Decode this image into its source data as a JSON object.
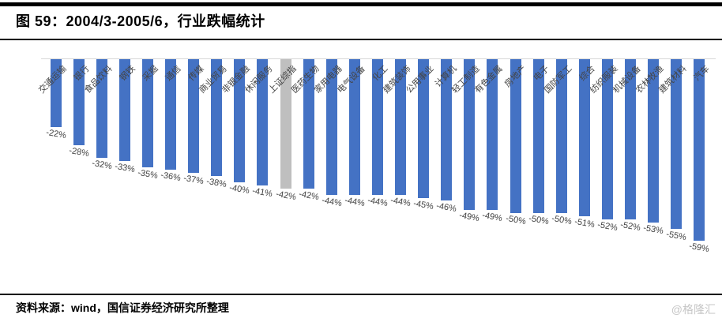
{
  "header": {
    "figure_title": "图 59：2004/3-2005/6，行业跌幅统计"
  },
  "footer": {
    "source": "资料来源：wind，国信证券经济研究所整理",
    "watermark": "@格隆汇"
  },
  "chart_data": {
    "type": "bar",
    "orientation": "vertical-negative",
    "title": "2004/3-2005/6，行业跌幅统计",
    "categories": [
      "交通运输",
      "银行",
      "食品饮料",
      "钢铁",
      "采掘",
      "通信",
      "传媒",
      "商业贸易",
      "非银金融",
      "休闲服务",
      "上证综指",
      "医药生物",
      "家用电器",
      "电气设备",
      "化工",
      "建筑装饰",
      "公用事业",
      "计算机",
      "轻工制造",
      "有色金属",
      "房地产",
      "电子",
      "国防军工",
      "综合",
      "纺织服装",
      "机械设备",
      "农林牧渔",
      "建筑材料",
      "汽车"
    ],
    "values": [
      -22,
      -28,
      -32,
      -33,
      -35,
      -36,
      -37,
      -38,
      -40,
      -41,
      -42,
      -42,
      -44,
      -44,
      -44,
      -44,
      -45,
      -46,
      -49,
      -49,
      -50,
      -50,
      -50,
      -51,
      -52,
      -52,
      -53,
      -55,
      -59
    ],
    "value_format": "percent",
    "highlight_category": "上证综指",
    "highlight_index": 10,
    "bar_color": "#4472c4",
    "highlight_color": "#bfbfbf",
    "axis_line_color": "#d9d9d9",
    "ylim": [
      -59,
      0
    ],
    "grid": false,
    "legend": false,
    "xlabel": "",
    "ylabel": ""
  }
}
